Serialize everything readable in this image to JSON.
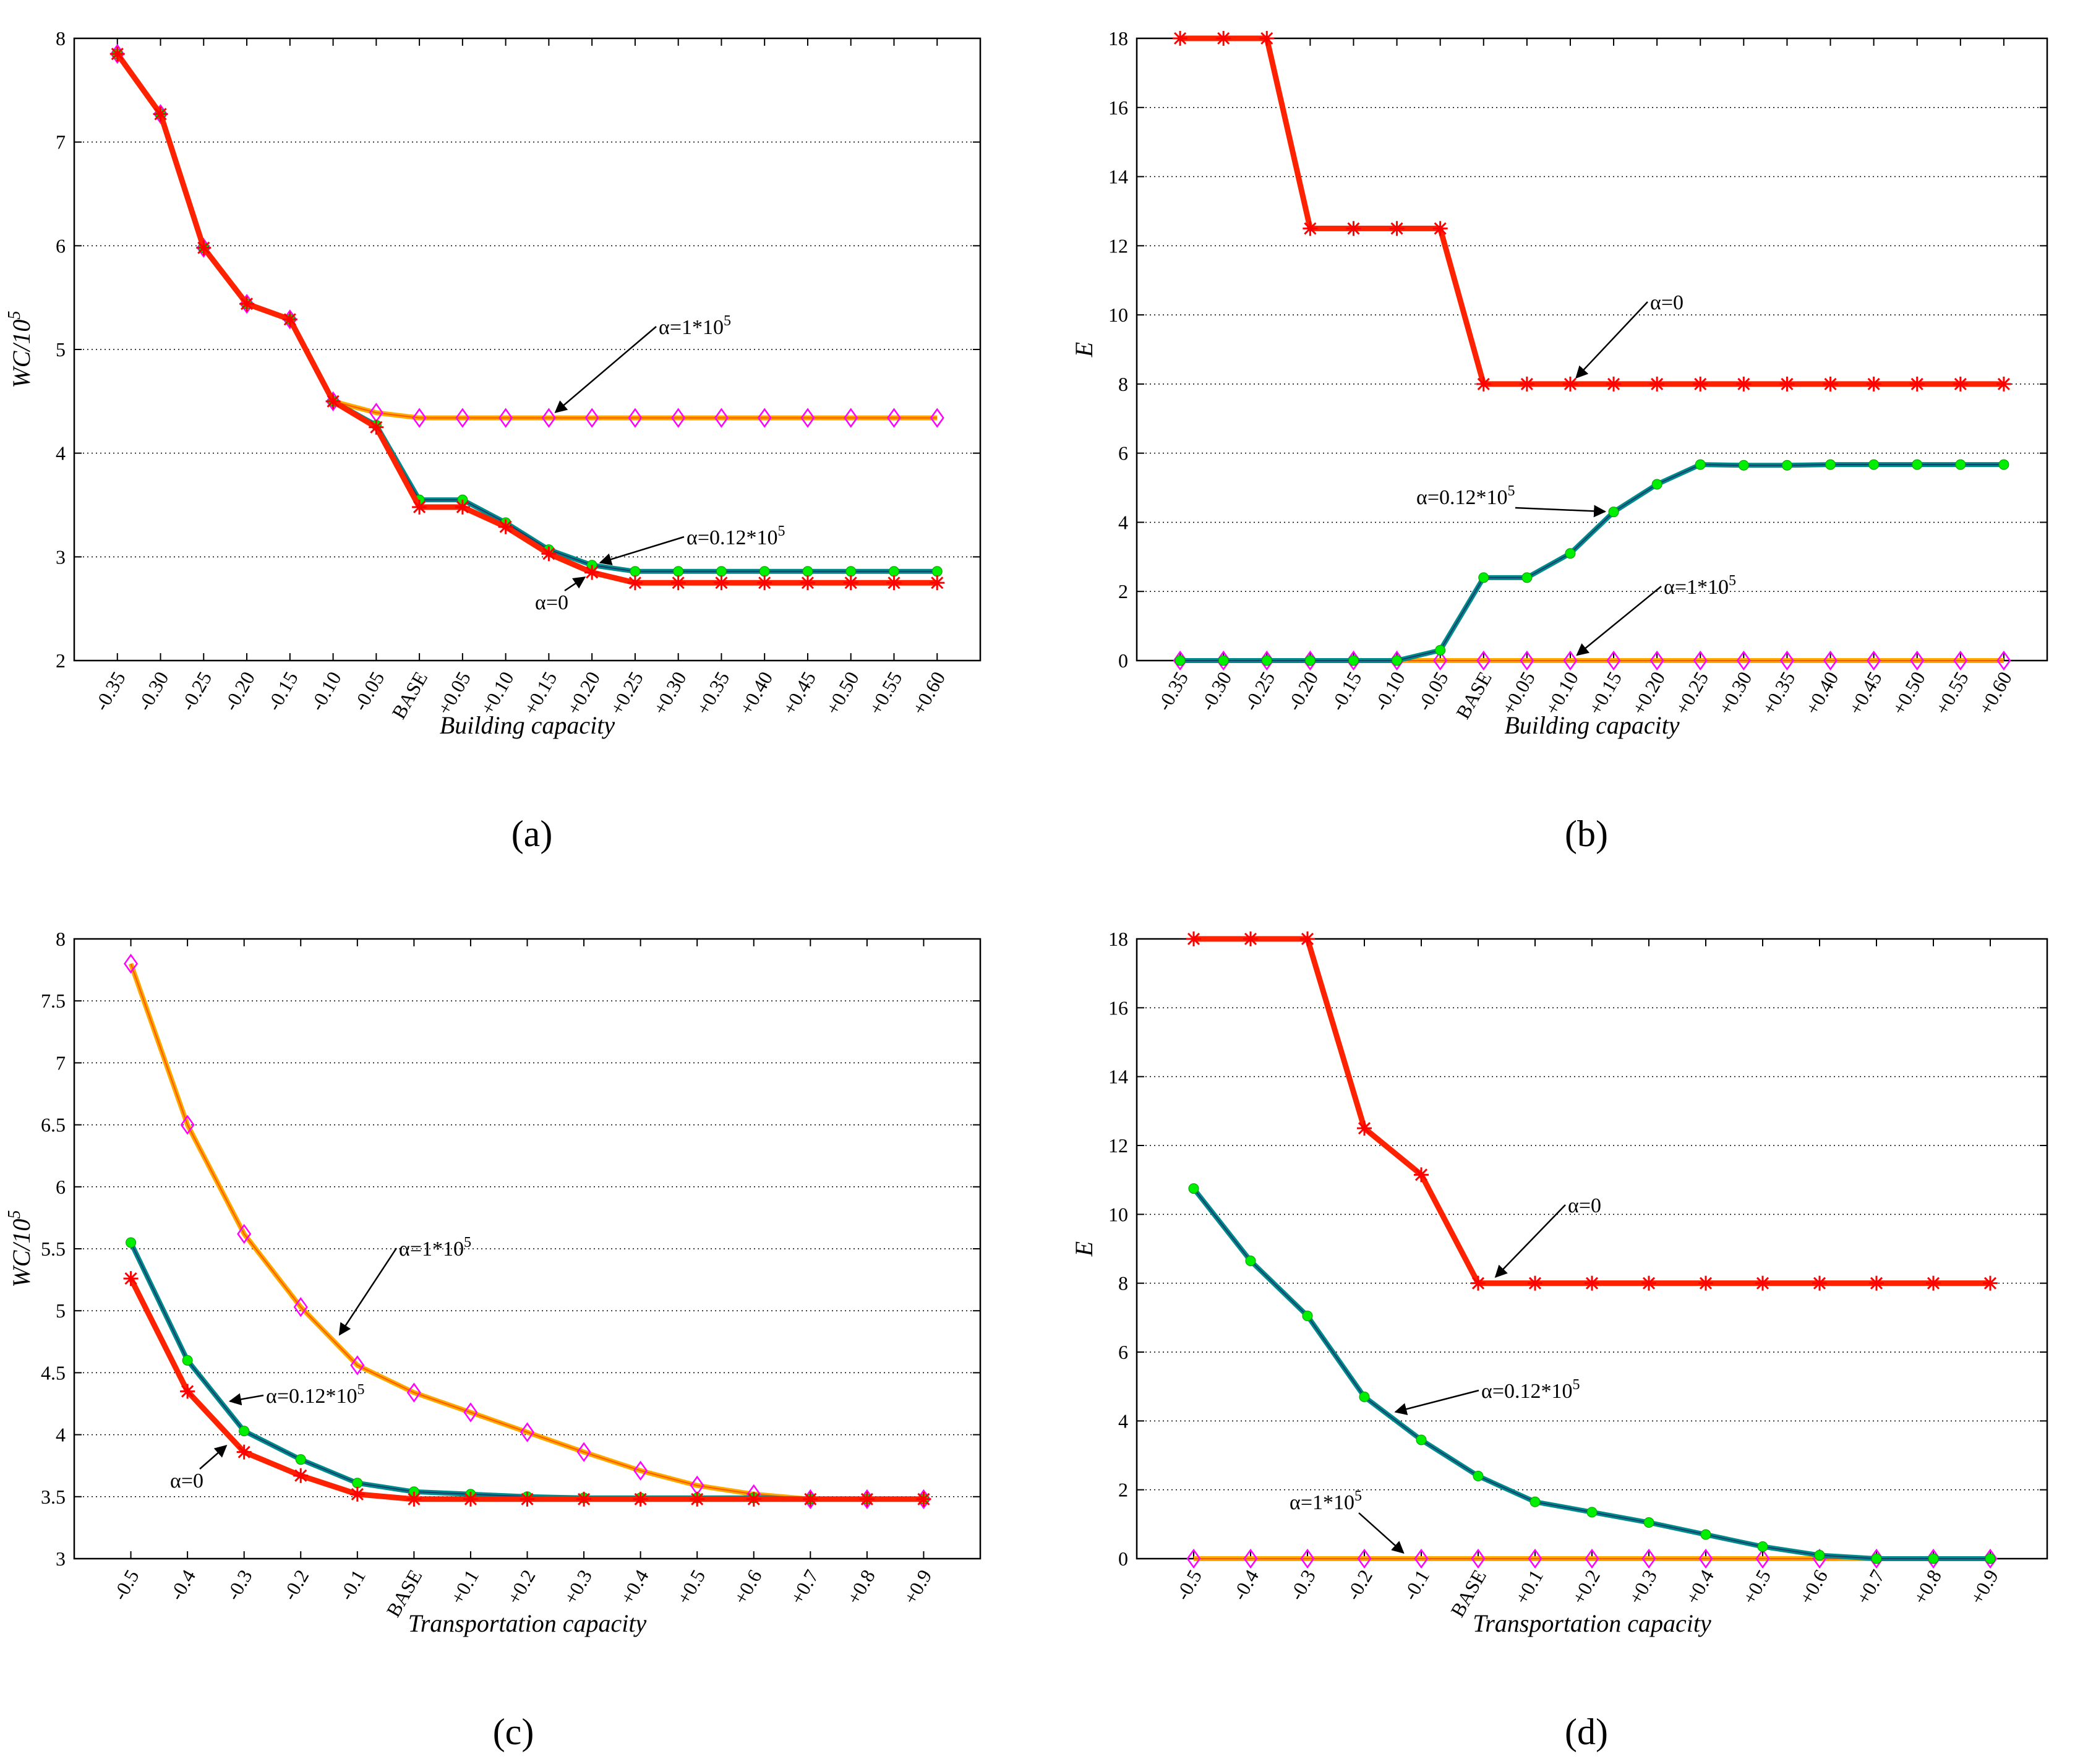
{
  "chart_data": [
    {
      "panel": "a",
      "caption": "(a)",
      "type": "line",
      "xlabel": "Building capacity",
      "ylabel": "WC/10^5",
      "ylim": [
        2,
        8
      ],
      "yticks": [
        "2",
        "3",
        "4",
        "5",
        "6",
        "7",
        "8"
      ],
      "grid": "horizontal dotted",
      "categories": [
        "-0.35",
        "-0.30",
        "-0.25",
        "-0.20",
        "-0.15",
        "-0.10",
        "-0.05",
        "BASE",
        "+0.05",
        "+0.10",
        "+0.15",
        "+0.20",
        "+0.25",
        "+0.30",
        "+0.35",
        "+0.40",
        "+0.45",
        "+0.50",
        "+0.55",
        "+0.60"
      ],
      "series": [
        {
          "name": "α=1*10^5",
          "marker": "diamond",
          "color": "#ffaa00",
          "markerColor": "#ff00ff",
          "values": [
            7.85,
            7.27,
            5.98,
            5.44,
            5.29,
            4.5,
            4.39,
            4.34,
            4.34,
            4.34,
            4.34,
            4.34,
            4.34,
            4.34,
            4.34,
            4.34,
            4.34,
            4.34,
            4.34,
            4.34
          ]
        },
        {
          "name": "α=0.12*10^5",
          "marker": "dot",
          "color": "#008b8b",
          "markerColor": "#00ee00",
          "values": [
            7.85,
            7.27,
            5.98,
            5.44,
            5.29,
            4.5,
            4.27,
            3.55,
            3.55,
            3.33,
            3.07,
            2.92,
            2.86,
            2.86,
            2.86,
            2.86,
            2.86,
            2.86,
            2.86,
            2.86
          ]
        },
        {
          "name": "α=0",
          "marker": "star",
          "color": "#ff2200",
          "markerColor": "#ff0000",
          "values": [
            7.85,
            7.27,
            5.98,
            5.44,
            5.29,
            4.5,
            4.25,
            3.48,
            3.48,
            3.29,
            3.03,
            2.85,
            2.75,
            2.75,
            2.75,
            2.75,
            2.75,
            2.75,
            2.75,
            2.75
          ]
        }
      ],
      "annotations": [
        {
          "text": "α=1*10",
          "sup": "5",
          "series": 0,
          "point": 10
        },
        {
          "text": "α=0.12*10",
          "sup": "5",
          "series": 1,
          "point": 11
        },
        {
          "text": "α=0",
          "sup": "",
          "series": 2,
          "point": 11
        }
      ]
    },
    {
      "panel": "b",
      "caption": "(b)",
      "type": "line",
      "xlabel": "Building capacity",
      "ylabel": "E",
      "ylim": [
        0,
        18
      ],
      "yticks": [
        "0",
        "2",
        "4",
        "6",
        "8",
        "10",
        "12",
        "14",
        "16",
        "18"
      ],
      "grid": "horizontal dotted",
      "categories": [
        "-0.35",
        "-0.30",
        "-0.25",
        "-0.20",
        "-0.15",
        "-0.10",
        "-0.05",
        "BASE",
        "+0.05",
        "+0.10",
        "+0.15",
        "+0.20",
        "+0.25",
        "+0.30",
        "+0.35",
        "+0.40",
        "+0.45",
        "+0.50",
        "+0.55",
        "+0.60"
      ],
      "series": [
        {
          "name": "α=1*10^5",
          "marker": "diamond",
          "color": "#ffaa00",
          "markerColor": "#ff00ff",
          "values": [
            0,
            0,
            0,
            0,
            0,
            0,
            0,
            0,
            0,
            0,
            0,
            0,
            0,
            0,
            0,
            0,
            0,
            0,
            0,
            0
          ]
        },
        {
          "name": "α=0.12*10^5",
          "marker": "dot",
          "color": "#008b8b",
          "markerColor": "#00ee00",
          "values": [
            0,
            0,
            0,
            0,
            0,
            0,
            0.3,
            2.4,
            2.4,
            3.1,
            4.3,
            5.1,
            5.67,
            5.65,
            5.65,
            5.67,
            5.67,
            5.67,
            5.67,
            5.67
          ]
        },
        {
          "name": "α=0",
          "marker": "star",
          "color": "#ff2200",
          "markerColor": "#ff0000",
          "values": [
            18,
            18,
            18,
            12.5,
            12.5,
            12.5,
            12.5,
            8,
            8,
            8,
            8,
            8,
            8,
            8,
            8,
            8,
            8,
            8,
            8,
            8
          ]
        }
      ],
      "annotations": [
        {
          "text": "α=0",
          "sup": "",
          "series": 2,
          "point": 9
        },
        {
          "text": "α=0.12*10",
          "sup": "5",
          "series": 1,
          "point": 10
        },
        {
          "text": "α=1*10",
          "sup": "5",
          "series": 0,
          "point": 9
        }
      ]
    },
    {
      "panel": "c",
      "caption": "(c)",
      "type": "line",
      "xlabel": "Transportation capacity",
      "ylabel": "WC/10^5",
      "ylim": [
        3,
        8
      ],
      "yticks": [
        "3",
        "3.5",
        "4",
        "4.5",
        "5",
        "5.5",
        "6",
        "6.5",
        "7",
        "7.5",
        "8"
      ],
      "grid": "horizontal dotted",
      "categories": [
        "-0.5",
        "-0.4",
        "-0.3",
        "-0.2",
        "-0.1",
        "BASE",
        "+0.1",
        "+0.2",
        "+0.3",
        "+0.4",
        "+0.5",
        "+0.6",
        "+0.7",
        "+0.8",
        "+0.9"
      ],
      "series": [
        {
          "name": "α=1*10^5",
          "marker": "diamond",
          "color": "#ffaa00",
          "markerColor": "#ff00ff",
          "values": [
            7.8,
            6.5,
            5.62,
            5.03,
            4.56,
            4.34,
            4.18,
            4.02,
            3.86,
            3.71,
            3.59,
            3.52,
            3.48,
            3.48,
            3.48
          ]
        },
        {
          "name": "α=0.12*10^5",
          "marker": "dot",
          "color": "#008b8b",
          "markerColor": "#00ee00",
          "values": [
            5.55,
            4.6,
            4.03,
            3.8,
            3.61,
            3.54,
            3.52,
            3.5,
            3.49,
            3.49,
            3.49,
            3.49,
            3.48,
            3.48,
            3.48
          ]
        },
        {
          "name": "α=0",
          "marker": "star",
          "color": "#ff2200",
          "markerColor": "#ff0000",
          "values": [
            5.26,
            4.35,
            3.86,
            3.67,
            3.52,
            3.48,
            3.48,
            3.48,
            3.48,
            3.48,
            3.48,
            3.48,
            3.48,
            3.48,
            3.48
          ]
        }
      ],
      "annotations": [
        {
          "text": "α=1*10",
          "sup": "5",
          "series": 0,
          "point": 3.6
        },
        {
          "text": "α=0.12*10",
          "sup": "5",
          "series": 1,
          "point": 1.6
        },
        {
          "text": "α=0",
          "sup": "",
          "series": 2,
          "point": 1.8
        }
      ]
    },
    {
      "panel": "d",
      "caption": "(d)",
      "type": "line",
      "xlabel": "Transportation capacity",
      "ylabel": "E",
      "ylim": [
        0,
        18
      ],
      "yticks": [
        "0",
        "2",
        "4",
        "6",
        "8",
        "10",
        "12",
        "14",
        "16",
        "18"
      ],
      "grid": "horizontal dotted",
      "categories": [
        "-0.5",
        "-0.4",
        "-0.3",
        "-0.2",
        "-0.1",
        "BASE",
        "+0.1",
        "+0.2",
        "+0.3",
        "+0.4",
        "+0.5",
        "+0.6",
        "+0.7",
        "+0.8",
        "+0.9"
      ],
      "series": [
        {
          "name": "α=1*10^5",
          "marker": "diamond",
          "color": "#ffaa00",
          "markerColor": "#ff00ff",
          "values": [
            0,
            0,
            0,
            0,
            0,
            0,
            0,
            0,
            0,
            0,
            0,
            0,
            0,
            0,
            0
          ]
        },
        {
          "name": "α=0.12*10^5",
          "marker": "dot",
          "color": "#008b8b",
          "markerColor": "#00ee00",
          "values": [
            10.75,
            8.65,
            7.05,
            4.7,
            3.45,
            2.4,
            1.65,
            1.35,
            1.05,
            0.7,
            0.35,
            0.1,
            0,
            0,
            0
          ]
        },
        {
          "name": "α=0",
          "marker": "star",
          "color": "#ff2200",
          "markerColor": "#ff0000",
          "values": [
            18,
            18,
            18,
            12.5,
            11.15,
            8,
            8,
            8,
            8,
            8,
            8,
            8,
            8,
            8,
            8
          ]
        }
      ],
      "annotations": [
        {
          "text": "α=0",
          "sup": "",
          "series": 2,
          "point": 5.2
        },
        {
          "text": "α=0.12*10",
          "sup": "5",
          "series": 1,
          "point": 3.4
        },
        {
          "text": "α=1*10",
          "sup": "5",
          "series": 0,
          "point": 3.8
        }
      ]
    }
  ]
}
